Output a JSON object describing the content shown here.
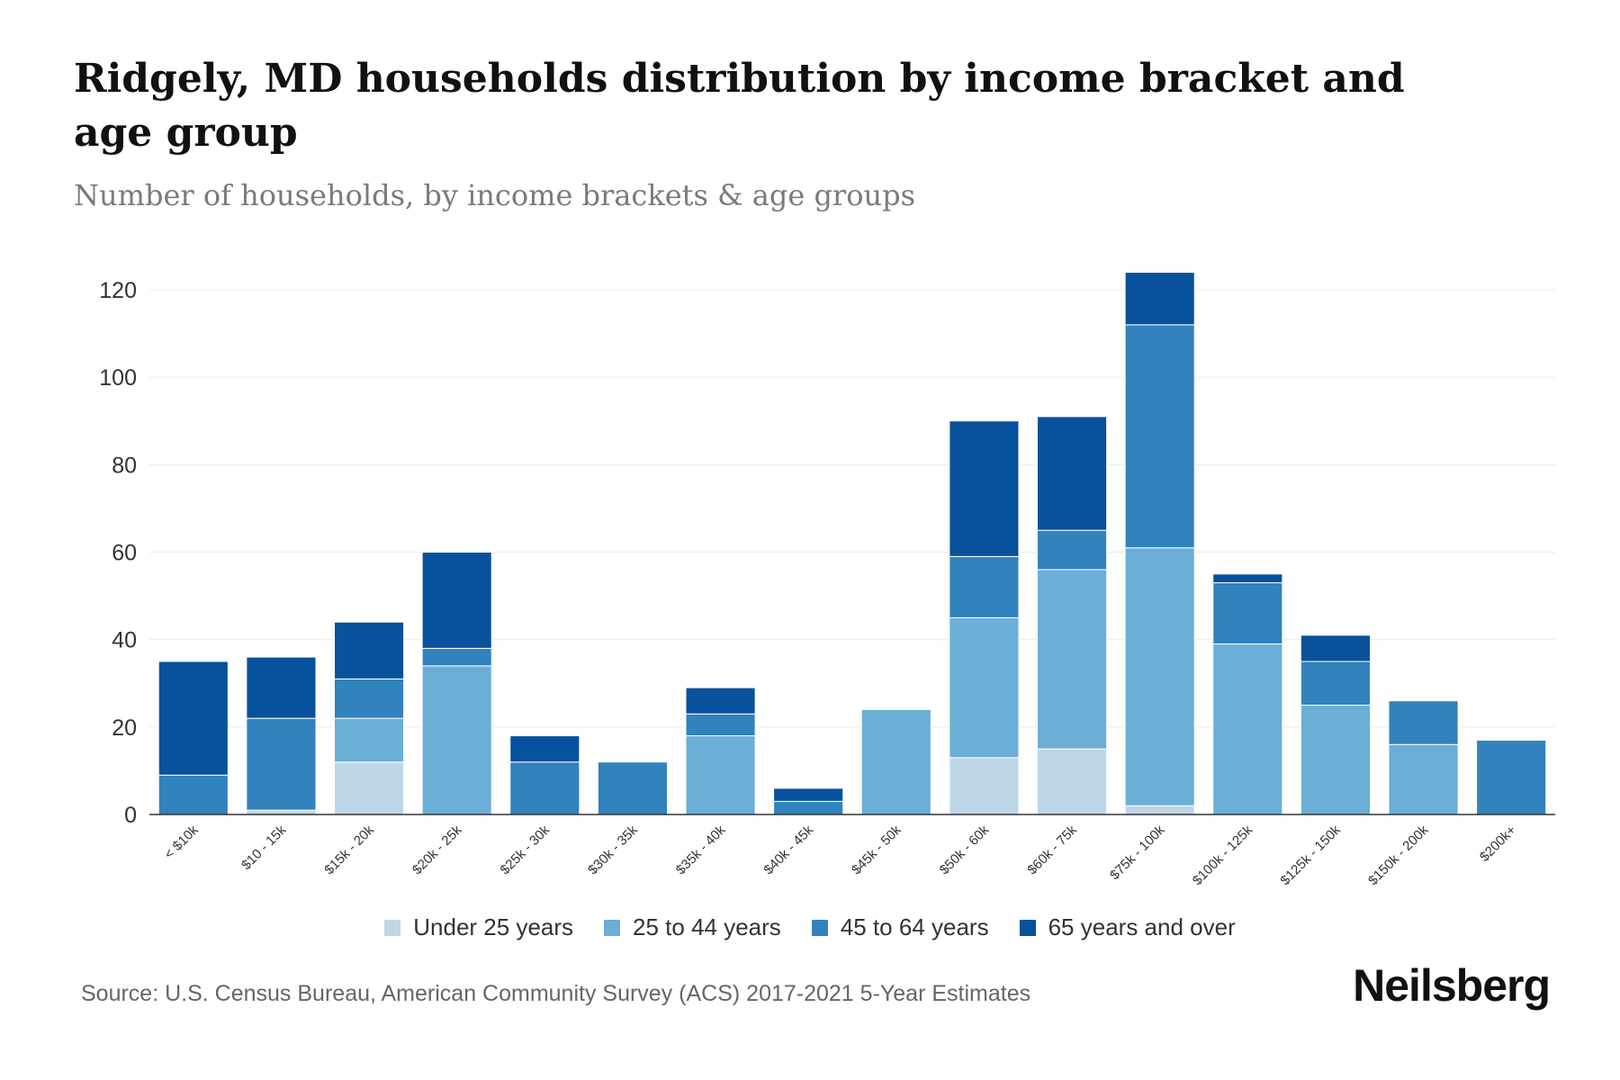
{
  "header": {
    "title": "Ridgely, MD households distribution by income bracket and age group",
    "subtitle": "Number of households, by income brackets & age groups"
  },
  "footer": {
    "source": "Source: U.S. Census Bureau, American Community Survey (ACS) 2017-2021 5-Year Estimates",
    "brand": "Neilsberg"
  },
  "chart_data": {
    "type": "bar",
    "stacked": true,
    "title": "Ridgely, MD households distribution by income bracket and age group",
    "subtitle": "Number of households, by income brackets & age groups",
    "xlabel": "",
    "ylabel": "",
    "ylim": [
      0,
      120
    ],
    "yticks": [
      0,
      20,
      40,
      60,
      80,
      100,
      120
    ],
    "grid": true,
    "legend_position": "bottom",
    "categories": [
      "< $10k",
      "$10 - 15k",
      "$15k - 20k",
      "$20k - 25k",
      "$25k - 30k",
      "$30k - 35k",
      "$35k - 40k",
      "$40k - 45k",
      "$45k - 50k",
      "$50k - 60k",
      "$60k - 75k",
      "$75k - 100k",
      "$100k - 125k",
      "$125k - 150k",
      "$150k - 200k",
      "$200k+"
    ],
    "series": [
      {
        "name": "Under 25 years",
        "color": "#bdd7e7",
        "values": [
          0,
          1,
          12,
          0,
          0,
          0,
          0,
          0,
          0,
          13,
          15,
          2,
          0,
          0,
          0,
          0
        ]
      },
      {
        "name": "25 to 44 years",
        "color": "#6baed6",
        "values": [
          0,
          0,
          10,
          34,
          0,
          0,
          18,
          0,
          24,
          32,
          41,
          59,
          39,
          25,
          16,
          0
        ]
      },
      {
        "name": "45 to 64 years",
        "color": "#3182bd",
        "values": [
          9,
          21,
          9,
          4,
          12,
          12,
          5,
          3,
          0,
          14,
          9,
          51,
          14,
          10,
          10,
          17
        ]
      },
      {
        "name": "65 years and over",
        "color": "#08519c",
        "values": [
          26,
          14,
          13,
          22,
          6,
          0,
          6,
          3,
          0,
          31,
          26,
          12,
          2,
          6,
          0,
          0
        ]
      }
    ]
  }
}
